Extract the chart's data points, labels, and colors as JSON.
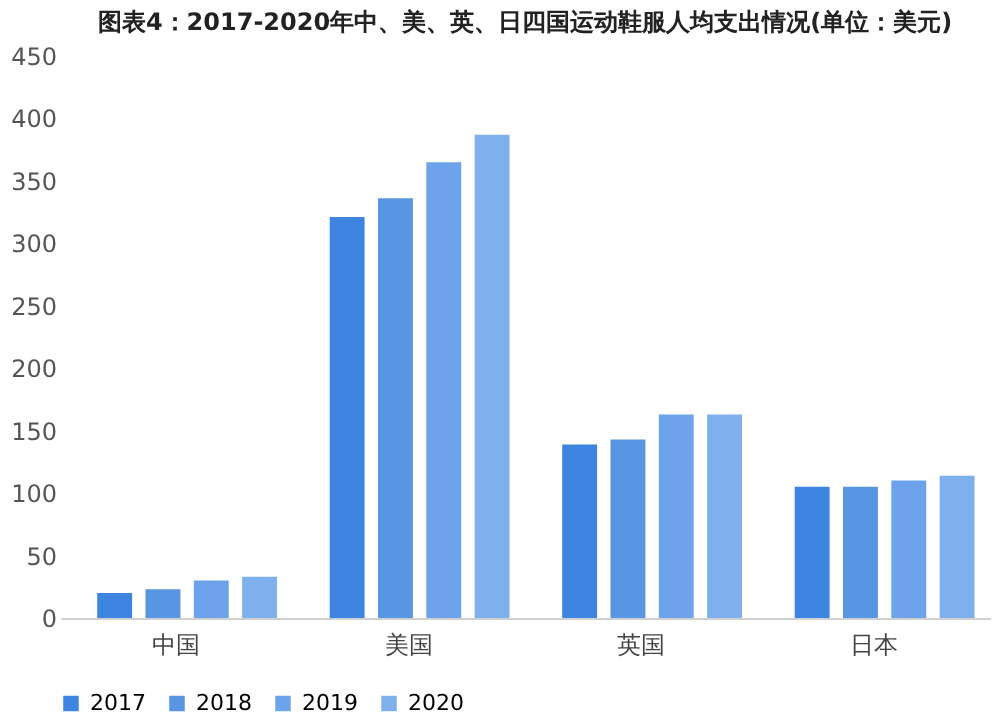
{
  "chart_data": {
    "type": "bar",
    "title": "图表4：2017-2020年中、美、英、日四国运动鞋服人均支出情况(单位：美元)",
    "categories": [
      "中国",
      "美国",
      "英国",
      "日本"
    ],
    "series": [
      {
        "name": "2017",
        "color": "#3d85e0",
        "values": [
          20,
          321,
          139,
          105
        ]
      },
      {
        "name": "2018",
        "color": "#5896e4",
        "values": [
          23,
          336,
          143,
          105
        ]
      },
      {
        "name": "2019",
        "color": "#6ca3ea",
        "values": [
          30,
          365,
          163,
          110
        ]
      },
      {
        "name": "2020",
        "color": "#7eb0ee",
        "values": [
          33,
          387,
          163,
          114
        ]
      }
    ],
    "ylim": [
      0,
      450
    ],
    "yticks": [
      0,
      50,
      100,
      150,
      200,
      250,
      300,
      350,
      400,
      450
    ],
    "grid": false,
    "legend": "bottom"
  }
}
